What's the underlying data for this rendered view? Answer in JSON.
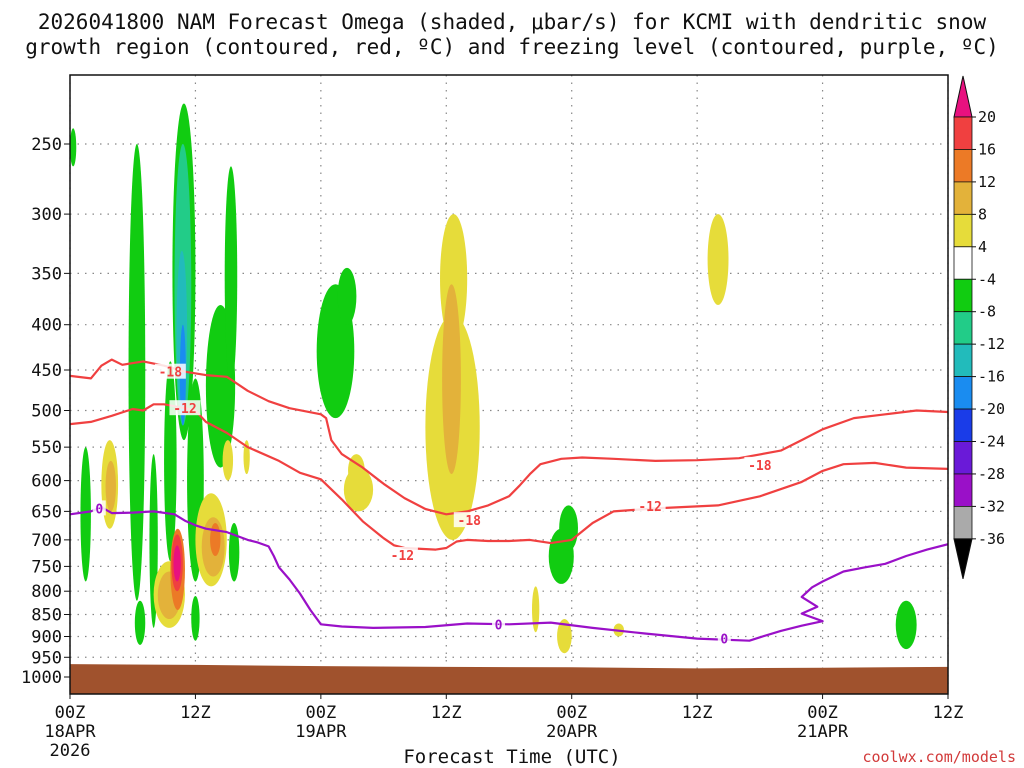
{
  "chart_data": {
    "type": "heatmap",
    "title_line1": "2026041800 NAM Forecast Omega (shaded, μbar/s) for KCMI with dendritic snow",
    "title_line2": "growth region (contoured, red, ºC) and freezing level (contoured, purple, ºC)",
    "xlabel": "Forecast Time (UTC)",
    "ylabel": "",
    "x_range_hours": [
      0,
      84
    ],
    "y_range_hpa": [
      1000,
      200
    ],
    "y_ticks": [
      250,
      300,
      350,
      400,
      450,
      500,
      550,
      600,
      650,
      700,
      750,
      800,
      850,
      900,
      950,
      1000
    ],
    "x_ticks": [
      {
        "hour": 0,
        "label": "00Z",
        "sub1": "18APR",
        "sub2": "2026"
      },
      {
        "hour": 12,
        "label": "12Z",
        "sub1": "",
        "sub2": ""
      },
      {
        "hour": 24,
        "label": "00Z",
        "sub1": "19APR",
        "sub2": ""
      },
      {
        "hour": 36,
        "label": "12Z",
        "sub1": "",
        "sub2": ""
      },
      {
        "hour": 48,
        "label": "00Z",
        "sub1": "20APR",
        "sub2": ""
      },
      {
        "hour": 60,
        "label": "12Z",
        "sub1": "",
        "sub2": ""
      },
      {
        "hour": 72,
        "label": "00Z",
        "sub1": "21APR",
        "sub2": ""
      },
      {
        "hour": 84,
        "label": "12Z",
        "sub1": "",
        "sub2": ""
      }
    ],
    "colorbar": {
      "labels": [
        "20",
        "16",
        "12",
        "8",
        "4",
        "-4",
        "-8",
        "-12",
        "-16",
        "-20",
        "-24",
        "-28",
        "-32",
        "-36"
      ],
      "colors": [
        "#e8117f",
        "#f04040",
        "#ec7a26",
        "#e3b23a",
        "#e6dc3a",
        "#ffffff",
        "#11cc11",
        "#22cc88",
        "#22bbbb",
        "#1a8cf0",
        "#1a3ce8",
        "#6a1ad8",
        "#9a10c8",
        "#aaaaaa",
        "#000000"
      ]
    },
    "series": [
      {
        "name": "Dendritic -18C",
        "color": "#f04040",
        "contour_label": "-18",
        "points": [
          [
            0,
            457
          ],
          [
            2,
            460
          ],
          [
            3,
            445
          ],
          [
            4,
            438
          ],
          [
            5,
            444
          ],
          [
            7,
            440
          ],
          [
            9,
            445
          ],
          [
            11,
            452
          ],
          [
            13,
            456
          ],
          [
            15,
            458
          ],
          [
            17,
            475
          ],
          [
            19,
            488
          ],
          [
            21,
            497
          ],
          [
            24,
            505
          ],
          [
            24.5,
            510
          ],
          [
            25,
            540
          ],
          [
            26,
            560
          ],
          [
            28,
            580
          ],
          [
            30,
            605
          ],
          [
            32,
            628
          ],
          [
            34,
            646
          ],
          [
            36,
            655
          ],
          [
            38,
            650
          ],
          [
            40,
            640
          ],
          [
            42,
            625
          ],
          [
            43,
            608
          ],
          [
            44,
            590
          ],
          [
            45,
            575
          ],
          [
            47,
            567
          ],
          [
            49,
            565
          ],
          [
            52,
            567
          ],
          [
            56,
            570
          ],
          [
            60,
            569
          ],
          [
            64,
            566
          ],
          [
            68,
            555
          ],
          [
            70,
            540
          ],
          [
            72,
            525
          ],
          [
            75,
            510
          ],
          [
            78,
            505
          ],
          [
            81,
            500
          ],
          [
            84,
            502
          ]
        ]
      },
      {
        "name": "Dendritic -12C",
        "color": "#f04040",
        "contour_label": "-12",
        "points": [
          [
            0,
            518
          ],
          [
            2,
            515
          ],
          [
            4,
            507
          ],
          [
            6,
            498
          ],
          [
            7,
            500
          ],
          [
            8,
            492
          ],
          [
            9,
            492
          ],
          [
            11,
            497
          ],
          [
            12,
            500
          ],
          [
            13,
            515
          ],
          [
            15,
            530
          ],
          [
            17,
            550
          ],
          [
            20,
            570
          ],
          [
            22,
            588
          ],
          [
            24,
            598
          ],
          [
            26,
            630
          ],
          [
            28,
            667
          ],
          [
            30,
            697
          ],
          [
            31,
            710
          ],
          [
            32,
            715
          ],
          [
            35,
            718
          ],
          [
            36,
            715
          ],
          [
            37,
            703
          ],
          [
            38,
            700
          ],
          [
            40,
            702
          ],
          [
            42,
            702
          ],
          [
            44,
            700
          ],
          [
            46,
            706
          ],
          [
            48,
            700
          ],
          [
            50,
            670
          ],
          [
            52,
            650
          ],
          [
            56,
            645
          ],
          [
            62,
            640
          ],
          [
            66,
            625
          ],
          [
            70,
            602
          ],
          [
            72,
            585
          ],
          [
            74,
            575
          ],
          [
            77,
            573
          ],
          [
            80,
            580
          ],
          [
            84,
            582
          ]
        ]
      },
      {
        "name": "Freezing level 0C",
        "color": "#9a10c8",
        "contour_label": "0",
        "points": [
          [
            0,
            655
          ],
          [
            2,
            650
          ],
          [
            3,
            643
          ],
          [
            4,
            653
          ],
          [
            6,
            652
          ],
          [
            8,
            650
          ],
          [
            10,
            655
          ],
          [
            11,
            666
          ],
          [
            12,
            674
          ],
          [
            13,
            680
          ],
          [
            15,
            686
          ],
          [
            16,
            693
          ],
          [
            17,
            700
          ],
          [
            18,
            705
          ],
          [
            19,
            712
          ],
          [
            19.5,
            730
          ],
          [
            20,
            752
          ],
          [
            21,
            776
          ],
          [
            22,
            805
          ],
          [
            23,
            840
          ],
          [
            24,
            872
          ],
          [
            26,
            877
          ],
          [
            29,
            880
          ],
          [
            34,
            878
          ],
          [
            38,
            870
          ],
          [
            42,
            872
          ],
          [
            46,
            868
          ],
          [
            50,
            880
          ],
          [
            55,
            893
          ],
          [
            60,
            905
          ],
          [
            65,
            910
          ],
          [
            66,
            902
          ],
          [
            68,
            887
          ],
          [
            70,
            875
          ],
          [
            72,
            865
          ],
          [
            70,
            848
          ],
          [
            71.5,
            833
          ],
          [
            70,
            812
          ],
          [
            71,
            792
          ],
          [
            72,
            780
          ],
          [
            74,
            760
          ],
          [
            76,
            752
          ],
          [
            78,
            745
          ],
          [
            80,
            730
          ],
          [
            82,
            718
          ],
          [
            84,
            708
          ]
        ]
      }
    ]
  },
  "credit": "coolwx.com/models"
}
